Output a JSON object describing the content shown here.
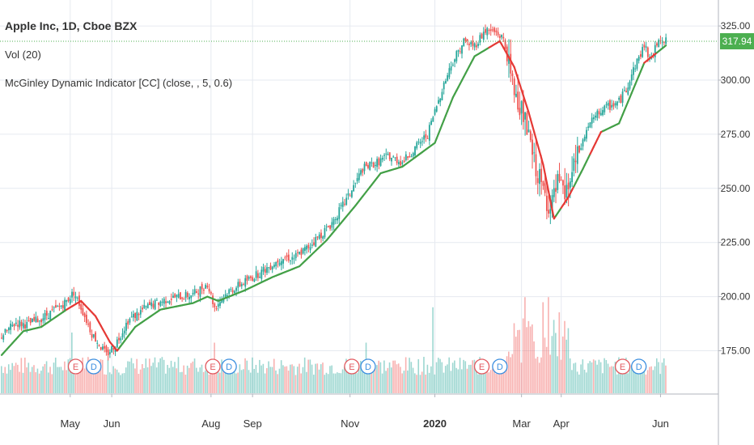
{
  "chart_data": {
    "type": "candlestick",
    "title": "Apple Inc, 1D, Cboe BZX",
    "volume_label": "Vol (20)",
    "indicator_label": "McGinley Dynamic Indicator [CC] (close, , 5, 0.6)",
    "last_price": "317.94",
    "y_ticks": [
      "175.00",
      "200.00",
      "225.00",
      "250.00",
      "275.00",
      "300.00",
      "325.00"
    ],
    "y_range": [
      155,
      337
    ],
    "x_labels": [
      {
        "label": "May",
        "day": 38,
        "bold": false
      },
      {
        "label": "Jun",
        "day": 61,
        "bold": false
      },
      {
        "label": "Aug",
        "day": 116,
        "bold": false
      },
      {
        "label": "Sep",
        "day": 139,
        "bold": false
      },
      {
        "label": "Nov",
        "day": 193,
        "bold": false
      },
      {
        "label": "2020",
        "day": 240,
        "bold": true
      },
      {
        "label": "Mar",
        "day": 288,
        "bold": false
      },
      {
        "label": "Apr",
        "day": 310,
        "bold": false
      },
      {
        "label": "Jun",
        "day": 365,
        "bold": false
      }
    ],
    "gridlines": [
      175,
      200,
      225,
      250,
      275,
      300,
      325
    ],
    "day_range": [
      0,
      389
    ],
    "anchors_close": [
      [
        0,
        182
      ],
      [
        8,
        188
      ],
      [
        14,
        187
      ],
      [
        22,
        190
      ],
      [
        30,
        194
      ],
      [
        36,
        198
      ],
      [
        40,
        202
      ],
      [
        44,
        195
      ],
      [
        50,
        183
      ],
      [
        58,
        173
      ],
      [
        63,
        178
      ],
      [
        70,
        189
      ],
      [
        80,
        195
      ],
      [
        92,
        199
      ],
      [
        106,
        201
      ],
      [
        114,
        206
      ],
      [
        118,
        195
      ],
      [
        125,
        202
      ],
      [
        135,
        207
      ],
      [
        145,
        212
      ],
      [
        155,
        218
      ],
      [
        162,
        218
      ],
      [
        170,
        223
      ],
      [
        182,
        233
      ],
      [
        192,
        246
      ],
      [
        200,
        259
      ],
      [
        208,
        262
      ],
      [
        214,
        265
      ],
      [
        222,
        262
      ],
      [
        236,
        275
      ],
      [
        244,
        296
      ],
      [
        250,
        309
      ],
      [
        256,
        318
      ],
      [
        262,
        316
      ],
      [
        268,
        323
      ],
      [
        274,
        322
      ],
      [
        278,
        319
      ],
      [
        283,
        298
      ],
      [
        289,
        284
      ],
      [
        295,
        262
      ],
      [
        300,
        249
      ],
      [
        304,
        240
      ],
      [
        308,
        252
      ],
      [
        312,
        246
      ],
      [
        318,
        262
      ],
      [
        325,
        279
      ],
      [
        332,
        286
      ],
      [
        342,
        290
      ],
      [
        346,
        296
      ],
      [
        350,
        305
      ],
      [
        356,
        316
      ],
      [
        360,
        309
      ],
      [
        364,
        320
      ],
      [
        368,
        317.94
      ]
    ],
    "mcginley_anchors": [
      [
        0,
        173
      ],
      [
        12,
        184
      ],
      [
        22,
        186
      ],
      [
        36,
        194
      ],
      [
        44,
        198
      ],
      [
        52,
        191
      ],
      [
        60,
        179
      ],
      [
        64,
        175
      ],
      [
        74,
        186
      ],
      [
        88,
        194
      ],
      [
        106,
        197
      ],
      [
        114,
        200
      ],
      [
        120,
        198
      ],
      [
        135,
        203
      ],
      [
        150,
        209
      ],
      [
        165,
        214
      ],
      [
        180,
        226
      ],
      [
        196,
        242
      ],
      [
        210,
        257
      ],
      [
        222,
        260
      ],
      [
        240,
        271
      ],
      [
        250,
        292
      ],
      [
        262,
        311
      ],
      [
        276,
        318
      ],
      [
        284,
        306
      ],
      [
        292,
        285
      ],
      [
        300,
        261
      ],
      [
        306,
        236
      ],
      [
        314,
        246
      ],
      [
        322,
        259
      ],
      [
        332,
        276
      ],
      [
        342,
        280
      ],
      [
        356,
        308
      ],
      [
        368,
        316
      ]
    ],
    "mcginley_red_segments": [
      [
        36,
        64
      ],
      [
        270,
        306
      ],
      [
        310,
        316
      ],
      [
        326,
        332
      ],
      [
        356,
        362
      ]
    ],
    "earnings_markers": [
      {
        "letter": "E",
        "day": 41,
        "color": "#e2595f"
      },
      {
        "letter": "D",
        "day": 51,
        "color": "#3c8fe0"
      },
      {
        "letter": "E",
        "day": 117,
        "color": "#e2595f"
      },
      {
        "letter": "D",
        "day": 126,
        "color": "#3c8fe0"
      },
      {
        "letter": "E",
        "day": 194,
        "color": "#e2595f"
      },
      {
        "letter": "D",
        "day": 203,
        "color": "#3c8fe0"
      },
      {
        "letter": "E",
        "day": 266,
        "color": "#e2595f"
      },
      {
        "letter": "D",
        "day": 276,
        "color": "#3c8fe0"
      },
      {
        "letter": "E",
        "day": 344,
        "color": "#e2595f"
      },
      {
        "letter": "D",
        "day": 353,
        "color": "#3c8fe0"
      }
    ],
    "volume_spikes": [
      [
        39,
        0.6
      ],
      [
        118,
        0.5
      ],
      [
        202,
        0.5
      ],
      [
        239,
        0.85
      ],
      [
        290,
        0.95
      ],
      [
        300,
        0.9
      ],
      [
        303,
        0.95
      ],
      [
        309,
        0.8
      ]
    ]
  },
  "colors": {
    "up": "#26a69a",
    "down": "#ef5350",
    "mcginley_up": "#43a047",
    "mcginley_down": "#e53935",
    "grid": "#e6eaf0",
    "axis_text": "#333333",
    "price_line": "#4caf50"
  }
}
